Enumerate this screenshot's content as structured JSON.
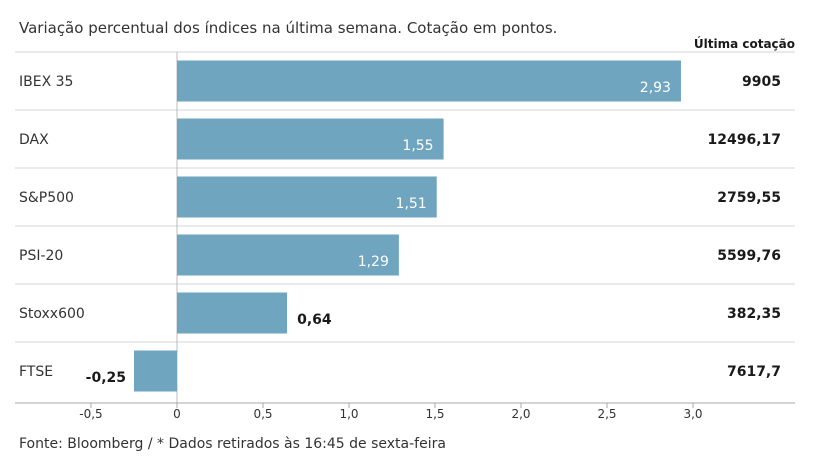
{
  "chart_data": {
    "type": "bar",
    "orientation": "horizontal",
    "subtitle": "Variação percentual dos índices na última semana. Cotação em pontos.",
    "column_header": "Última cotação",
    "categories": [
      "IBEX 35",
      "DAX",
      "S&P500",
      "PSI-20",
      "Stoxx600",
      "FTSE"
    ],
    "values": [
      2.93,
      1.55,
      1.51,
      1.29,
      0.64,
      -0.25
    ],
    "value_labels": [
      "2,93",
      "1,55",
      "1,51",
      "1,29",
      "0,64",
      "-0,25"
    ],
    "quotes": [
      "9905",
      "12496,17",
      "2759,55",
      "5599,76",
      "382,35",
      "7617,7"
    ],
    "xlim": [
      -0.5,
      3.0
    ],
    "x_ticks": [
      -0.5,
      0,
      0.5,
      1.0,
      1.5,
      2.0,
      2.5,
      3.0
    ],
    "x_tick_labels": [
      "-0,5",
      "0",
      "0,5",
      "1,0",
      "1,5",
      "2,0",
      "2,5",
      "3,0"
    ],
    "bar_color": "#6fa5be",
    "grid": false,
    "source": "Fonte: Bloomberg / * Dados retirados às 16:45 de sexta-feira"
  }
}
